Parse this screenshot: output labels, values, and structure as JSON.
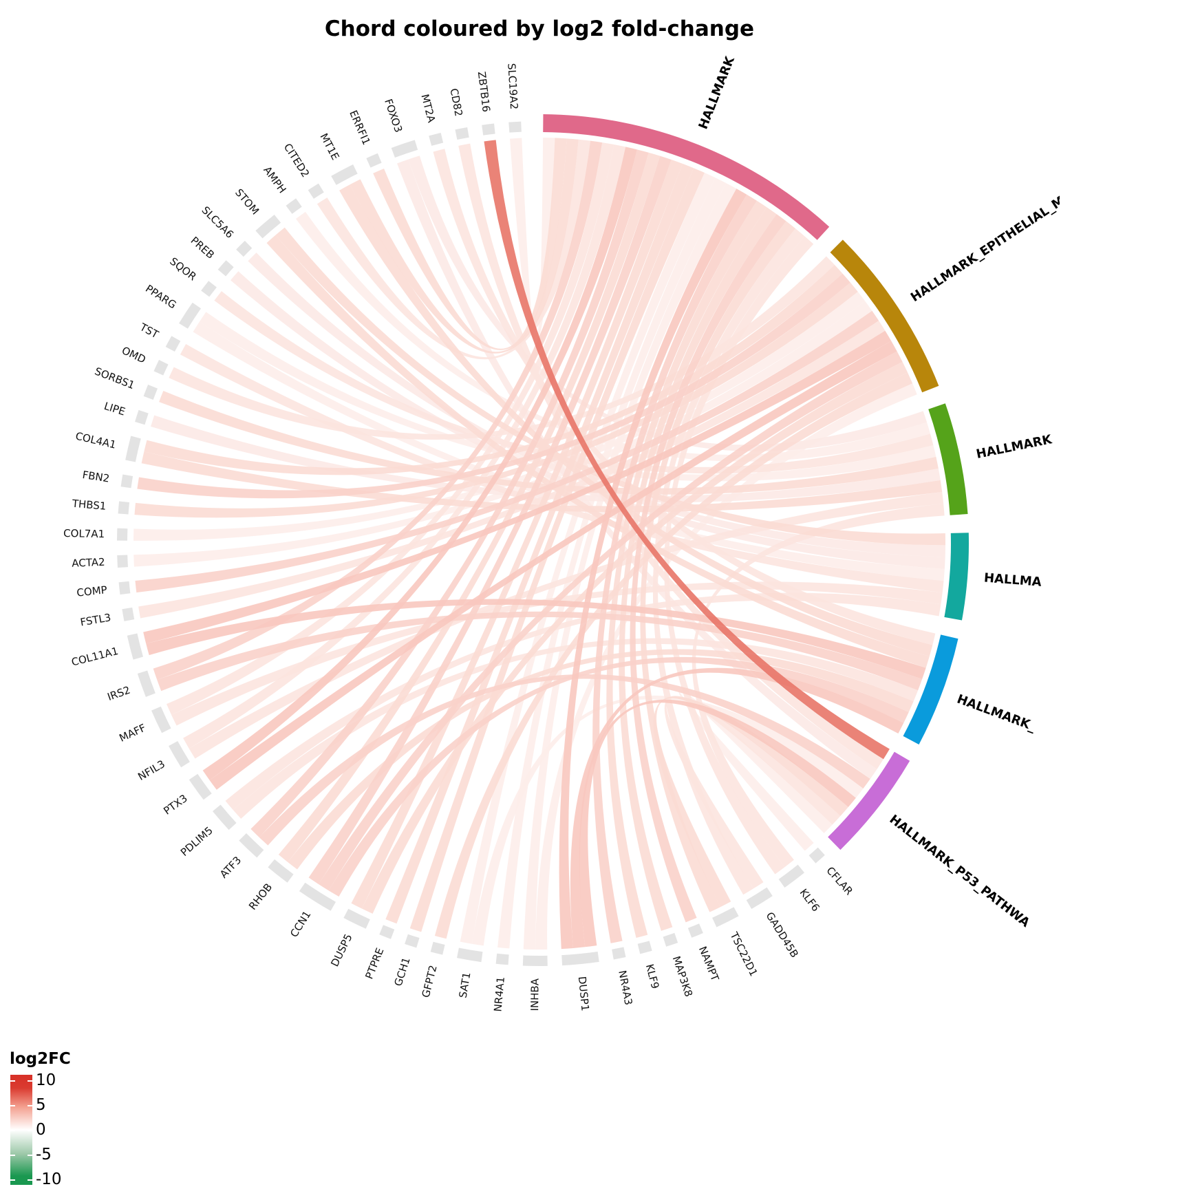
{
  "chart_data": {
    "type": "chord",
    "title": "Chord coloured by log2 fold-change",
    "sectors": [
      {
        "name": "HALLMARK",
        "color": "#E0698A"
      },
      {
        "name": "HALLMARK_EPITHELIAL_M",
        "color": "#B8860B"
      },
      {
        "name": "HALLMARK",
        "color": "#55A31A"
      },
      {
        "name": "HALLMA",
        "color": "#13A89E"
      },
      {
        "name": "HALLMARK_",
        "color": "#0A9BDC"
      },
      {
        "name": "HALLMARK_P53_PATHWA",
        "color": "#C86DD7"
      }
    ],
    "gene_block_color": "#E3E3E3",
    "genes": [
      "CFLAR",
      "KLF6",
      "GADD45B",
      "TSC22D1",
      "NAMPT",
      "MAP3K8",
      "KLF9",
      "NR4A3",
      "DUSP1",
      "INHBA",
      "NR4A1",
      "SAT1",
      "GFPT2",
      "GCH1",
      "PTPRE",
      "DUSP5",
      "CCN1",
      "RHOB",
      "ATF3",
      "PDLIM5",
      "PTX3",
      "NFIL3",
      "MAFF",
      "IRS2",
      "COL11A1",
      "FSTL3",
      "COMP",
      "ACTA2",
      "COL7A1",
      "THBS1",
      "FBN2",
      "COL4A1",
      "LIPE",
      "SORBS1",
      "OMD",
      "TST",
      "PPARG",
      "SQOR",
      "PREB",
      "SLC5A6",
      "STOM",
      "AMPH",
      "CITED2",
      "MT1E",
      "ERRFI1",
      "FOXO3",
      "MT2A",
      "CD82",
      "ZBTB16",
      "SLC19A2"
    ],
    "links": [
      [
        "SLC19A2",
        0,
        1.0
      ],
      [
        "ZBTB16",
        5,
        7.0
      ],
      [
        "CD82",
        5,
        1.5
      ],
      [
        "MT2A",
        4,
        1.5
      ],
      [
        "FOXO3",
        2,
        1.2
      ],
      [
        "FOXO3",
        5,
        1.2
      ],
      [
        "ERRFI1",
        0,
        2.0
      ],
      [
        "MT1E",
        4,
        2.0
      ],
      [
        "MT1E",
        0,
        2.0
      ],
      [
        "CITED2",
        0,
        1.5
      ],
      [
        "AMPH",
        2,
        1.0
      ],
      [
        "STOM",
        4,
        2.0
      ],
      [
        "STOM",
        3,
        2.0
      ],
      [
        "SLC5A6",
        3,
        1.2
      ],
      [
        "PREB",
        3,
        1.2
      ],
      [
        "SQOR",
        2,
        1.5
      ],
      [
        "PPARG",
        2,
        1.0
      ],
      [
        "PPARG",
        3,
        1.0
      ],
      [
        "TST",
        3,
        1.5
      ],
      [
        "OMD",
        1,
        1.5
      ],
      [
        "SORBS1",
        2,
        2.0
      ],
      [
        "LIPE",
        2,
        1.2
      ],
      [
        "COL4A1",
        1,
        2.0
      ],
      [
        "COL4A1",
        2,
        2.0
      ],
      [
        "FBN2",
        1,
        2.5
      ],
      [
        "THBS1",
        1,
        2.0
      ],
      [
        "COL7A1",
        1,
        1.0
      ],
      [
        "ACTA2",
        1,
        1.0
      ],
      [
        "COMP",
        1,
        2.5
      ],
      [
        "FSTL3",
        1,
        1.5
      ],
      [
        "COL11A1",
        1,
        3.0
      ],
      [
        "COL11A1",
        4,
        3.0
      ],
      [
        "IRS2",
        0,
        2.5
      ],
      [
        "IRS2",
        4,
        2.5
      ],
      [
        "MAFF",
        0,
        1.5
      ],
      [
        "MAFF",
        3,
        1.5
      ],
      [
        "NFIL3",
        0,
        1.5
      ],
      [
        "NFIL3",
        2,
        1.5
      ],
      [
        "PTX3",
        0,
        3.0
      ],
      [
        "PTX3",
        1,
        3.0
      ],
      [
        "PDLIM5",
        3,
        1.5
      ],
      [
        "PDLIM5",
        4,
        1.5
      ],
      [
        "ATF3",
        0,
        2.5
      ],
      [
        "ATF3",
        5,
        2.5
      ],
      [
        "RHOB",
        0,
        2.0
      ],
      [
        "RHOB",
        4,
        2.0
      ],
      [
        "CCN1",
        0,
        2.5
      ],
      [
        "CCN1",
        1,
        2.5
      ],
      [
        "CCN1",
        4,
        2.5
      ],
      [
        "DUSP5",
        0,
        2.0
      ],
      [
        "DUSP5",
        1,
        2.0
      ],
      [
        "PTPRE",
        0,
        2.0
      ],
      [
        "GCH1",
        0,
        2.0
      ],
      [
        "GFPT2",
        1,
        2.0
      ],
      [
        "SAT1",
        0,
        1.0
      ],
      [
        "SAT1",
        5,
        1.0
      ],
      [
        "NR4A1",
        0,
        1.0
      ],
      [
        "INHBA",
        0,
        1.0
      ],
      [
        "INHBA",
        1,
        1.0
      ],
      [
        "DUSP1",
        0,
        3.0
      ],
      [
        "DUSP1",
        4,
        3.0
      ],
      [
        "DUSP1",
        5,
        3.0
      ],
      [
        "NR4A3",
        0,
        2.5
      ],
      [
        "KLF9",
        0,
        2.0
      ],
      [
        "MAP3K8",
        0,
        2.0
      ],
      [
        "NAMPT",
        0,
        2.5
      ],
      [
        "TSC22D1",
        0,
        2.0
      ],
      [
        "TSC22D1",
        5,
        2.0
      ],
      [
        "GADD45B",
        0,
        1.5
      ],
      [
        "GADD45B",
        5,
        1.5
      ],
      [
        "KLF6",
        0,
        1.5
      ],
      [
        "KLF6",
        2,
        1.5
      ],
      [
        "CFLAR",
        5,
        1.0
      ]
    ],
    "legend": {
      "title": "log2FC",
      "ticks": [
        "10",
        "5",
        "0",
        "-5",
        "-10"
      ],
      "range": [
        -10,
        10
      ],
      "colors": {
        "high": "#D73027",
        "mid": "#FFFFFF",
        "low": "#1A9850"
      }
    }
  }
}
